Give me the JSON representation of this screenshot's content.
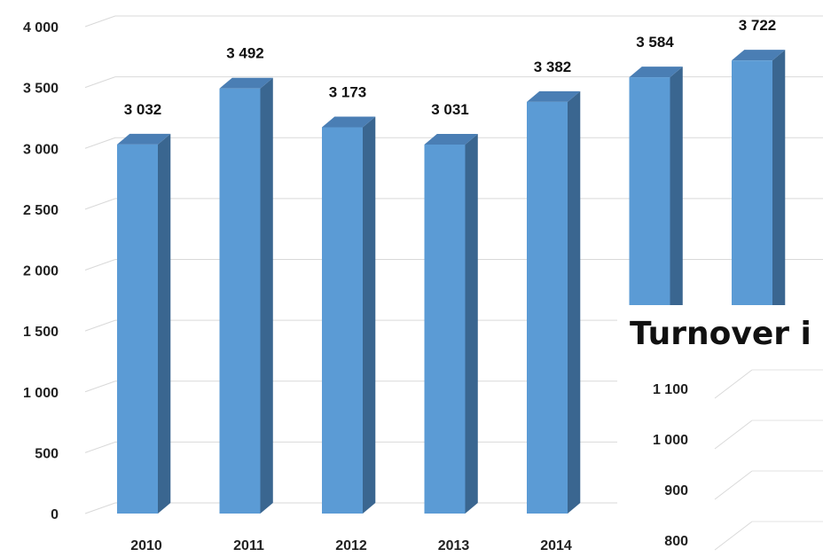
{
  "chart_data": [
    {
      "type": "bar",
      "title": "",
      "xlabel": "",
      "ylabel": "",
      "categories": [
        "2010",
        "2011",
        "2012",
        "2013",
        "2014",
        "",
        ""
      ],
      "values": [
        3032,
        3492,
        3173,
        3031,
        3382,
        3584,
        3722
      ],
      "data_labels": [
        "3 032",
        "3 492",
        "3 173",
        "3 031",
        "3 382",
        "3 584",
        "3 722"
      ],
      "ylim": [
        0,
        4000
      ],
      "yticks": [
        0,
        500,
        1000,
        1500,
        2000,
        2500,
        3000,
        3500,
        4000
      ],
      "ytick_labels": [
        "0",
        "500",
        "1 000",
        "1 500",
        "2 000",
        "2 500",
        "3 000",
        "3 500",
        "4 000"
      ],
      "grid": true,
      "style": "3d-column",
      "colors": {
        "front": "#5b9bd5",
        "side": "#3a6690",
        "top": "#4a7eb4",
        "grid": "#d9d9d9"
      }
    },
    {
      "type": "bar",
      "title": "Turnover i",
      "partially_visible": true,
      "yticks": [
        800,
        900,
        1000,
        1100
      ],
      "ytick_labels": [
        "800",
        "900",
        "1 000",
        "1 100"
      ],
      "grid": true
    }
  ]
}
